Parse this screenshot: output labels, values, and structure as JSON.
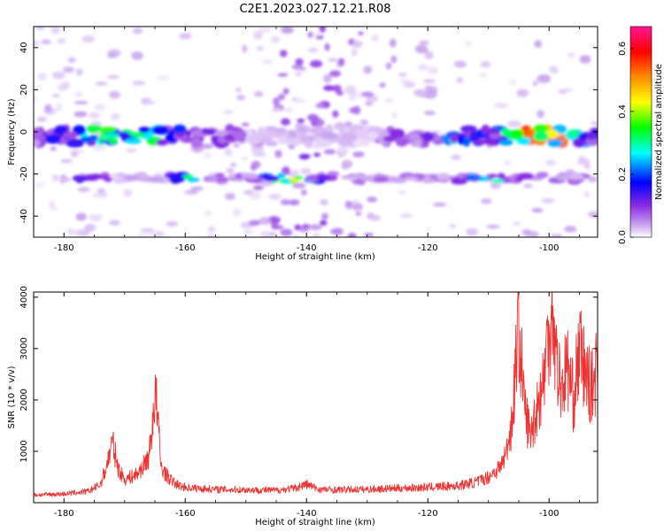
{
  "figure_title": "C2E1.2023.027.12.21.R08",
  "chart_data": [
    {
      "type": "heatmap",
      "title": "",
      "xlabel": "Height of straight line (km)",
      "ylabel": "Frequency (Hz)",
      "xlim": [
        -185,
        -92
      ],
      "ylim": [
        -50,
        50
      ],
      "xticks": [
        -180,
        -160,
        -140,
        -120,
        -100
      ],
      "yticks": [
        -40,
        -20,
        0,
        20,
        40
      ],
      "colorbar": {
        "label": "Normalized spectral amplitude",
        "range": [
          0,
          0.67
        ],
        "ticks": [
          0.0,
          0.2,
          0.4,
          0.6
        ],
        "colors": [
          "#ffffff",
          "#c8a0f0",
          "#8a2be2",
          "#0000ff",
          "#00ffff",
          "#00ff00",
          "#ffff00",
          "#ff8c00",
          "#ff0000",
          "#ff1493"
        ]
      },
      "bands": [
        {
          "name": "",
          "frequency": -2,
          "x_range": [
            -185,
            -92
          ],
          "peak_amplitude": 0.67,
          "peak_x": -101
        },
        {
          "name": "",
          "frequency": -22,
          "x_range": [
            -178,
            -92
          ],
          "peak_amplitude": 0.45,
          "peak_x": -143
        }
      ],
      "grid": false
    },
    {
      "type": "line",
      "title": "",
      "xlabel": "Height of straight line (km)",
      "ylabel": "SNR (10 * v/v)",
      "xlim": [
        -185,
        -92
      ],
      "ylim": [
        0,
        4100
      ],
      "xticks": [
        -180,
        -160,
        -140,
        -120,
        -100
      ],
      "yticks": [
        1000,
        2000,
        3000,
        4000
      ],
      "series": [
        {
          "name": "",
          "color": "#ee3333",
          "x": [
            -185,
            -180,
            -176,
            -174,
            -173,
            -172,
            -171,
            -170,
            -168,
            -167,
            -166,
            -165.5,
            -165,
            -164.5,
            -164,
            -163,
            -162,
            -161,
            -160,
            -158,
            -155,
            -150,
            -145,
            -142,
            -140,
            -138,
            -135,
            -130,
            -125,
            -120,
            -115,
            -112,
            -110,
            -108,
            -107,
            -106,
            -105.5,
            -105,
            -104.5,
            -104,
            -103,
            -102,
            -101,
            -100.5,
            -100,
            -99.5,
            -99,
            -98,
            -97,
            -96,
            -95,
            -94,
            -93,
            -92
          ],
          "values": [
            150,
            170,
            220,
            350,
            700,
            1180,
            650,
            450,
            550,
            700,
            900,
            1400,
            2180,
            1600,
            700,
            520,
            400,
            330,
            300,
            280,
            260,
            250,
            240,
            280,
            360,
            260,
            250,
            260,
            280,
            300,
            330,
            400,
            500,
            700,
            1000,
            1700,
            2800,
            3450,
            2600,
            1800,
            1300,
            1900,
            2300,
            2900,
            3300,
            4100,
            3000,
            2200,
            2700,
            2000,
            3000,
            2500,
            2200,
            2700
          ]
        }
      ],
      "grid": false
    }
  ]
}
